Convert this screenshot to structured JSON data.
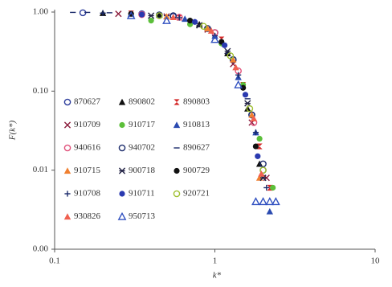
{
  "chart_data": {
    "type": "scatter",
    "xlabel": "k*",
    "ylabel": "F(k*)",
    "xscale": "log",
    "yscale": "log",
    "xlim": [
      0.1,
      10
    ],
    "ylim": [
      0.001,
      1
    ],
    "xticks": [
      0.1,
      1,
      10
    ],
    "yticks": [
      {
        "value": 1,
        "label": "1.00"
      },
      {
        "value": 0.1,
        "label": "0.10"
      },
      0.01,
      {
        "value": 0.001,
        "label": "0.00"
      }
    ],
    "grid": false,
    "legend": "left",
    "series": [
      {
        "name": "870627",
        "color": "#2a3a9a",
        "marker": "circle-open",
        "x": [
          0.15,
          0.35,
          0.55,
          1.0,
          1.3,
          1.7,
          2.0
        ],
        "values": [
          0.98,
          0.95,
          0.88,
          0.55,
          0.25,
          0.05,
          0.01
        ]
      },
      {
        "name": "890802",
        "color": "#111111",
        "marker": "triangle",
        "x": [
          0.2,
          0.45,
          0.8,
          1.2,
          1.6,
          1.9
        ],
        "values": [
          0.97,
          0.92,
          0.7,
          0.3,
          0.06,
          0.012
        ]
      },
      {
        "name": "890803",
        "color": "#d42a2a",
        "marker": "hourglass",
        "x": [
          0.3,
          0.6,
          1.1,
          1.5,
          1.9,
          2.2
        ],
        "values": [
          0.96,
          0.85,
          0.45,
          0.12,
          0.02,
          0.006
        ]
      },
      {
        "name": "910709",
        "color": "#8a1a3a",
        "marker": "x",
        "x": [
          0.25,
          0.5,
          0.9,
          1.3,
          1.7,
          2.1
        ],
        "values": [
          0.95,
          0.88,
          0.6,
          0.22,
          0.04,
          0.008
        ]
      },
      {
        "name": "910717",
        "color": "#5cbf3a",
        "marker": "circle",
        "x": [
          0.4,
          0.7,
          1.1,
          1.5,
          1.9,
          2.3
        ],
        "values": [
          0.78,
          0.7,
          0.4,
          0.12,
          0.025,
          0.006
        ]
      },
      {
        "name": "910813",
        "color": "#2a4ab0",
        "marker": "triangle",
        "x": [
          0.3,
          0.65,
          1.0,
          1.4,
          1.8,
          2.2
        ],
        "values": [
          0.95,
          0.82,
          0.5,
          0.15,
          0.03,
          0.003
        ]
      },
      {
        "name": "940616",
        "color": "#e0507a",
        "marker": "circle-open",
        "x": [
          0.35,
          0.6,
          1.0,
          1.4,
          1.75
        ],
        "values": [
          0.93,
          0.86,
          0.55,
          0.18,
          0.04
        ]
      },
      {
        "name": "940702",
        "color": "#1a2a6a",
        "marker": "circle-open",
        "x": [
          0.45,
          0.55,
          0.9,
          1.3,
          1.7,
          2.0
        ],
        "values": [
          0.92,
          0.9,
          0.62,
          0.25,
          0.05,
          0.012
        ]
      },
      {
        "name": "890627",
        "color": "#1a2a6a",
        "marker": "dash",
        "x": [
          0.13,
          0.16,
          0.22,
          0.5,
          1.2,
          1.6
        ],
        "values": [
          0.99,
          0.99,
          0.98,
          0.9,
          0.3,
          0.08
        ]
      },
      {
        "name": "910715",
        "color": "#f08030",
        "marker": "triangle",
        "x": [
          0.5,
          0.9,
          1.3,
          1.7,
          1.9
        ],
        "values": [
          0.88,
          0.62,
          0.25,
          0.05,
          0.008
        ]
      },
      {
        "name": "900718",
        "color": "#222244",
        "marker": "asterisk",
        "x": [
          0.4,
          0.8,
          1.2,
          1.6,
          2.0
        ],
        "values": [
          0.9,
          0.68,
          0.32,
          0.07,
          0.008
        ]
      },
      {
        "name": "900729",
        "color": "#111111",
        "marker": "circle",
        "x": [
          0.3,
          0.7,
          1.1,
          1.5,
          1.8
        ],
        "values": [
          0.95,
          0.78,
          0.42,
          0.11,
          0.02
        ]
      },
      {
        "name": "910708",
        "color": "#1a2a6a",
        "marker": "plus",
        "x": [
          0.2,
          0.6,
          1.0,
          1.4,
          1.8,
          2.1
        ],
        "values": [
          0.97,
          0.85,
          0.5,
          0.16,
          0.03,
          0.006
        ]
      },
      {
        "name": "910711",
        "color": "#2a3ab0",
        "marker": "circle",
        "x": [
          0.35,
          0.75,
          1.15,
          1.55,
          1.85
        ],
        "values": [
          0.93,
          0.75,
          0.38,
          0.09,
          0.015
        ]
      },
      {
        "name": "920721",
        "color": "#a0c030",
        "marker": "circle-open",
        "x": [
          0.45,
          0.85,
          1.25,
          1.65,
          2.0
        ],
        "values": [
          0.9,
          0.66,
          0.28,
          0.06,
          0.01
        ]
      },
      {
        "name": "930826",
        "color": "#f06050",
        "marker": "triangle",
        "x": [
          0.55,
          0.95,
          1.35,
          1.75,
          1.95
        ],
        "values": [
          0.86,
          0.58,
          0.2,
          0.045,
          0.009
        ]
      },
      {
        "name": "950713",
        "color": "#3050c0",
        "marker": "triangle-open",
        "x": [
          0.3,
          0.5,
          1.0,
          1.4,
          1.8,
          2.0,
          2.2,
          2.4
        ],
        "values": [
          0.9,
          0.78,
          0.45,
          0.12,
          0.004,
          0.004,
          0.004,
          0.004
        ]
      }
    ]
  }
}
